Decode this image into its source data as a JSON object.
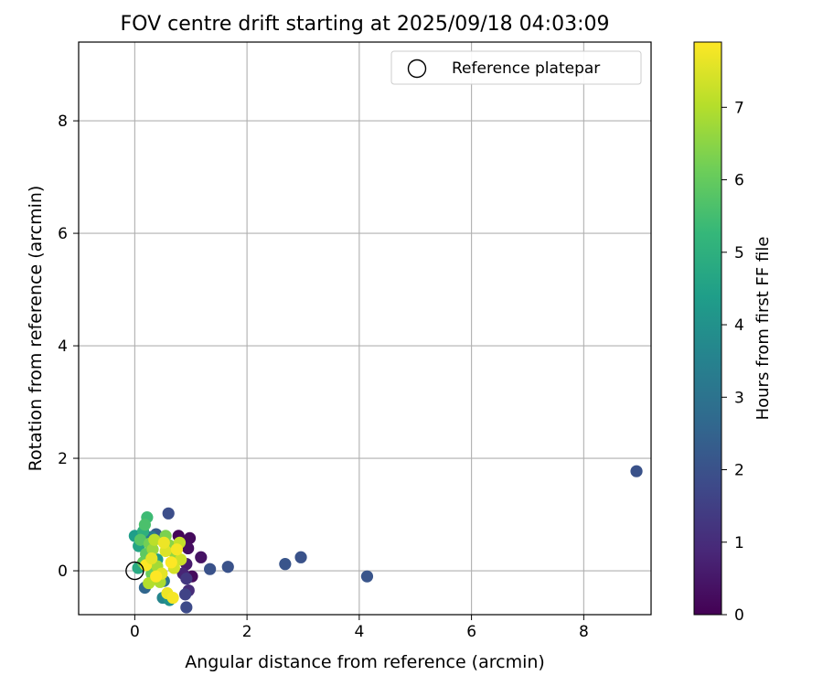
{
  "chart_data": {
    "type": "scatter",
    "title": "FOV centre drift starting at 2025/09/18 04:03:09",
    "xlabel": "Angular distance from reference (arcmin)",
    "ylabel": "Rotation from reference (arcmin)",
    "xlim": [
      -1.0,
      9.2
    ],
    "ylim": [
      -0.78,
      9.4
    ],
    "xticks": [
      0,
      2,
      4,
      6,
      8
    ],
    "yticks": [
      0,
      2,
      4,
      6,
      8
    ],
    "grid": true,
    "legend": {
      "location": "top-right",
      "entries": [
        {
          "label": "Reference platepar",
          "marker": "open-circle"
        }
      ]
    },
    "reference_point": {
      "x": 0.0,
      "y": 0.0
    },
    "colorbar": {
      "label": "Hours from first FF file",
      "colormap": "viridis",
      "range": [
        0,
        7.9
      ],
      "ticks": [
        0,
        1,
        2,
        3,
        4,
        5,
        6,
        7
      ]
    },
    "colormap_stops": [
      "#440154",
      "#482878",
      "#3e4989",
      "#31688e",
      "#26828e",
      "#1f9e89",
      "#35b779",
      "#6ece58",
      "#b5de2b",
      "#fde725"
    ],
    "points": [
      {
        "x": 0.78,
        "y": 0.62,
        "hours": 0.1
      },
      {
        "x": 0.98,
        "y": 0.58,
        "hours": 0.2
      },
      {
        "x": 0.95,
        "y": 0.4,
        "hours": 0.3
      },
      {
        "x": 1.02,
        "y": -0.1,
        "hours": 0.2
      },
      {
        "x": 1.18,
        "y": 0.24,
        "hours": 0.4
      },
      {
        "x": 0.92,
        "y": 0.12,
        "hours": 0.6
      },
      {
        "x": 0.86,
        "y": -0.05,
        "hours": 0.8
      },
      {
        "x": 0.96,
        "y": -0.35,
        "hours": 1.0
      },
      {
        "x": 0.92,
        "y": -0.14,
        "hours": 1.3
      },
      {
        "x": 0.9,
        "y": -0.42,
        "hours": 1.6
      },
      {
        "x": 0.92,
        "y": -0.65,
        "hours": 1.8
      },
      {
        "x": 0.6,
        "y": 1.02,
        "hours": 1.9
      },
      {
        "x": 1.34,
        "y": 0.03,
        "hours": 2.0
      },
      {
        "x": 1.66,
        "y": 0.07,
        "hours": 2.0
      },
      {
        "x": 2.68,
        "y": 0.12,
        "hours": 2.1
      },
      {
        "x": 2.96,
        "y": 0.24,
        "hours": 2.0
      },
      {
        "x": 4.14,
        "y": -0.1,
        "hours": 2.1
      },
      {
        "x": 8.94,
        "y": 1.77,
        "hours": 2.0
      },
      {
        "x": 0.38,
        "y": 0.65,
        "hours": 2.3
      },
      {
        "x": 0.18,
        "y": -0.3,
        "hours": 2.6
      },
      {
        "x": 0.52,
        "y": -0.18,
        "hours": 3.0
      },
      {
        "x": 0.3,
        "y": 0.6,
        "hours": 3.2
      },
      {
        "x": 0.5,
        "y": -0.48,
        "hours": 3.6
      },
      {
        "x": 0.62,
        "y": -0.52,
        "hours": 4.0
      },
      {
        "x": 0.4,
        "y": 0.2,
        "hours": 4.3
      },
      {
        "x": 0.0,
        "y": 0.62,
        "hours": 4.4
      },
      {
        "x": 0.07,
        "y": 0.44,
        "hours": 4.6
      },
      {
        "x": 0.06,
        "y": 0.05,
        "hours": 4.8
      },
      {
        "x": 0.15,
        "y": 0.7,
        "hours": 5.0
      },
      {
        "x": 0.22,
        "y": 0.95,
        "hours": 5.4
      },
      {
        "x": 0.18,
        "y": 0.82,
        "hours": 5.6
      },
      {
        "x": 0.1,
        "y": 0.55,
        "hours": 5.8
      },
      {
        "x": 0.2,
        "y": 0.3,
        "hours": 5.9
      },
      {
        "x": 0.15,
        "y": 0.15,
        "hours": 6.0
      },
      {
        "x": 0.3,
        "y": -0.05,
        "hours": 6.1
      },
      {
        "x": 0.26,
        "y": 0.48,
        "hours": 6.2
      },
      {
        "x": 0.55,
        "y": 0.62,
        "hours": 6.3
      },
      {
        "x": 0.62,
        "y": 0.45,
        "hours": 6.5
      },
      {
        "x": 0.72,
        "y": 0.3,
        "hours": 6.6
      },
      {
        "x": 0.32,
        "y": 0.38,
        "hours": 6.7
      },
      {
        "x": 0.4,
        "y": 0.08,
        "hours": 6.8
      },
      {
        "x": 0.45,
        "y": -0.2,
        "hours": 6.9
      },
      {
        "x": 0.25,
        "y": -0.22,
        "hours": 7.0
      },
      {
        "x": 0.35,
        "y": 0.55,
        "hours": 7.1
      },
      {
        "x": 0.8,
        "y": 0.5,
        "hours": 7.2
      },
      {
        "x": 0.82,
        "y": 0.2,
        "hours": 7.3
      },
      {
        "x": 0.7,
        "y": 0.05,
        "hours": 7.4
      },
      {
        "x": 0.55,
        "y": 0.35,
        "hours": 7.5
      },
      {
        "x": 0.48,
        "y": -0.05,
        "hours": 7.6
      },
      {
        "x": 0.58,
        "y": -0.4,
        "hours": 7.7
      },
      {
        "x": 0.68,
        "y": -0.48,
        "hours": 7.8
      },
      {
        "x": 0.2,
        "y": 0.1,
        "hours": 7.9
      },
      {
        "x": 0.65,
        "y": 0.15,
        "hours": 7.9
      },
      {
        "x": 0.75,
        "y": 0.38,
        "hours": 7.8
      },
      {
        "x": 0.52,
        "y": 0.5,
        "hours": 7.7
      },
      {
        "x": 0.38,
        "y": -0.1,
        "hours": 7.9
      },
      {
        "x": 0.3,
        "y": 0.22,
        "hours": 7.6
      }
    ]
  }
}
